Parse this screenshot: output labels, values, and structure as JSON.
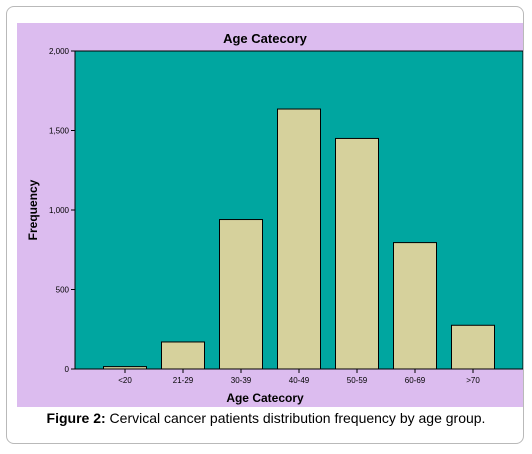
{
  "caption": {
    "label": "Figure 2:",
    "text": " Cervical cancer patients distribution frequency by age group."
  },
  "colors": {
    "outer_background": "#dcbcef",
    "plot_background": "#00a6a0",
    "bar_fill": "#d6d19c",
    "bar_stroke": "#000000"
  },
  "chart_data": {
    "type": "bar",
    "title": "Age Catecory",
    "xlabel": "Age Catecory",
    "ylabel": "Frequency",
    "categories": [
      "<20",
      "21-29",
      "30-39",
      "40-49",
      "50-59",
      "60-69",
      ">70"
    ],
    "values": [
      15,
      170,
      940,
      1635,
      1450,
      795,
      275
    ],
    "ylim": [
      0,
      2000
    ],
    "yticks": [
      0,
      500,
      1000,
      1500,
      2000
    ],
    "ytick_labels": [
      "0",
      "500",
      "1,000",
      "1,500",
      "2,000"
    ],
    "grid": false,
    "legend": "none"
  }
}
